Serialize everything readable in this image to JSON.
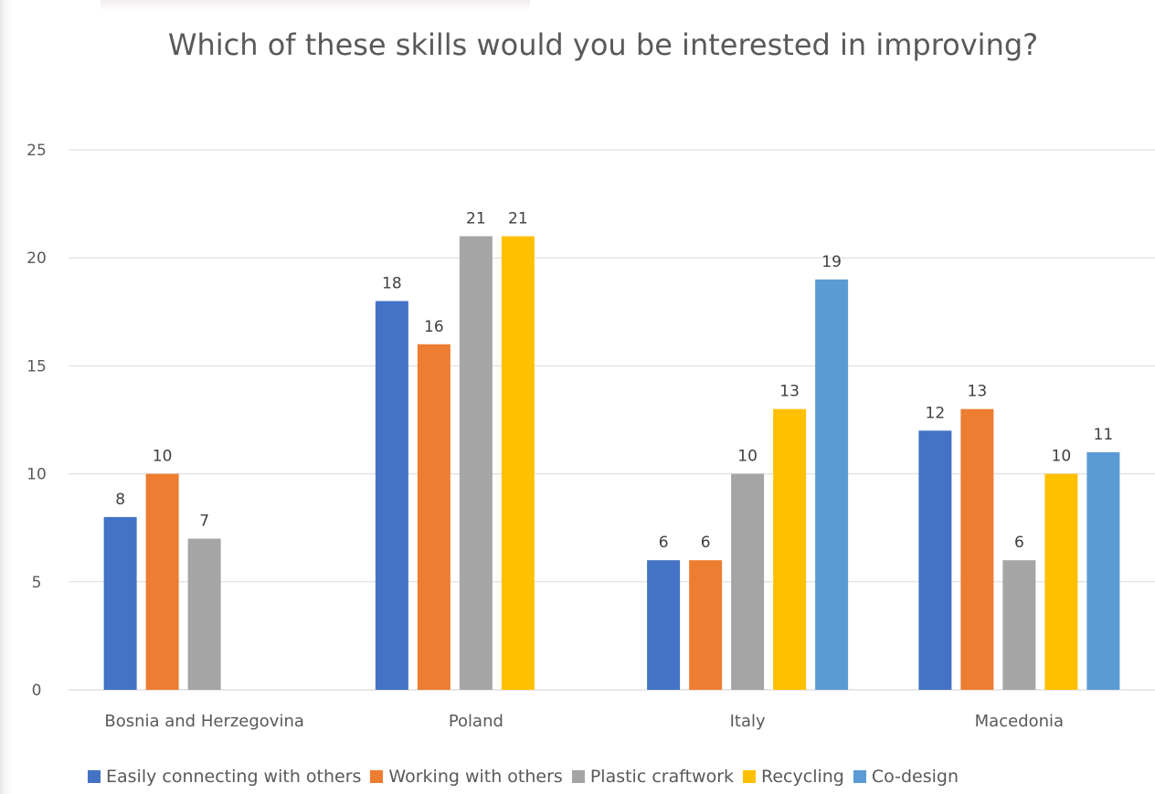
{
  "chart_data": {
    "type": "bar",
    "title": "Which of these skills would you be interested in improving?",
    "categories": [
      "Bosnia and Herzegovina",
      "Poland",
      "Italy",
      "Macedonia"
    ],
    "series": [
      {
        "name": "Easily connecting with others",
        "color": "#4472c4",
        "values": [
          8,
          18,
          6,
          12
        ]
      },
      {
        "name": "Working with others",
        "color": "#ed7d31",
        "values": [
          10,
          16,
          6,
          13
        ]
      },
      {
        "name": "Plastic craftwork",
        "color": "#a5a5a5",
        "values": [
          7,
          21,
          10,
          6
        ]
      },
      {
        "name": "Recycling",
        "color": "#ffc000",
        "values": [
          null,
          21,
          13,
          10
        ]
      },
      {
        "name": "Co-design",
        "color": "#5b9bd5",
        "values": [
          null,
          null,
          19,
          11
        ]
      }
    ],
    "y_ticks": [
      "0",
      "5",
      "10",
      "15",
      "20",
      "25"
    ],
    "ylim": [
      0,
      25
    ],
    "grid": true,
    "legend_position": "bottom",
    "data_labels": true
  }
}
